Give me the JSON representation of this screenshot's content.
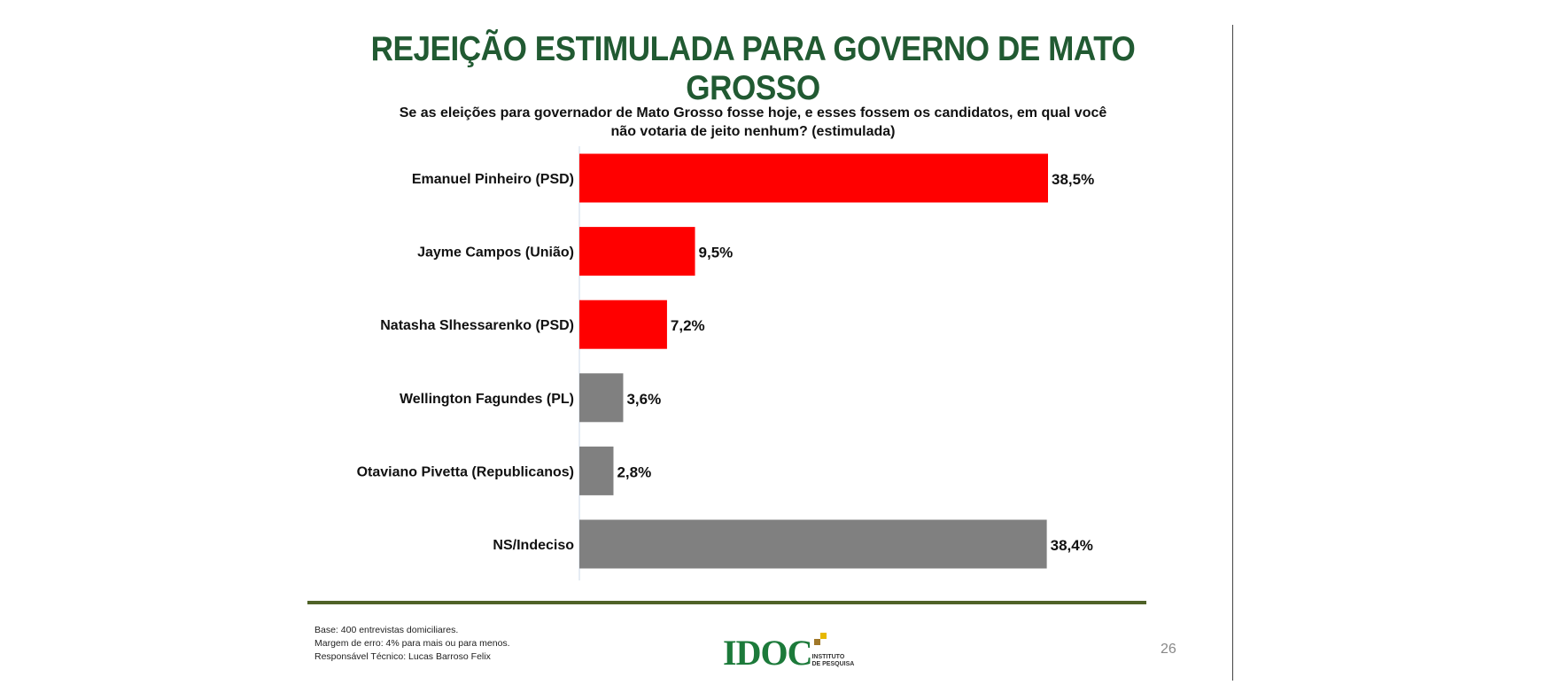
{
  "title": "REJEIÇÃO ESTIMULADA PARA GOVERNO DE MATO GROSSO",
  "chart_data": {
    "type": "bar",
    "orientation": "horizontal",
    "title": "Se as eleições para governador de Mato Grosso fosse hoje, e esses fossem os candidatos, em qual você não votaria de jeito nenhum? (estimulada)",
    "categories": [
      "Emanuel Pinheiro (PSD)",
      "Jayme Campos (União)",
      "Natasha Slhessarenko (PSD)",
      "Wellington Fagundes (PL)",
      "Otaviano Pivetta (Republicanos)",
      "NS/Indeciso"
    ],
    "values": [
      38.5,
      9.5,
      7.2,
      3.6,
      2.8,
      38.4
    ],
    "labels": [
      "38,5%",
      "9,5%",
      "7,2%",
      "3,6%",
      "2,8%",
      "38,4%"
    ],
    "colors": [
      "#ff0000",
      "#ff0000",
      "#ff0000",
      "#808080",
      "#808080",
      "#808080"
    ],
    "xlim": [
      0,
      40
    ],
    "grid": false
  },
  "footer": {
    "lines": [
      "Base: 400 entrevistas domiciliares.",
      "Margem de erro: 4% para mais ou para menos.",
      "Responsável Técnico: Lucas Barroso Felix"
    ],
    "logo_text": "IDOC",
    "logo_sub1": "INSTITUTO",
    "logo_sub2": "DE PESQUISA",
    "page_number": "26"
  }
}
